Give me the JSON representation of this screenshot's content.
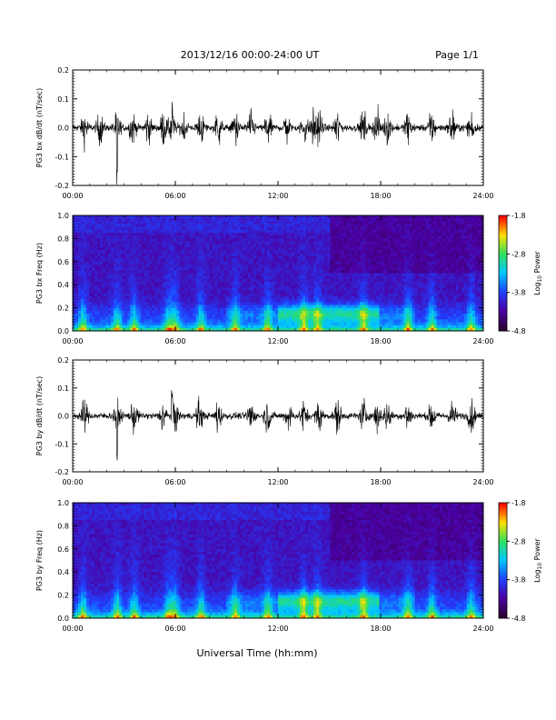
{
  "header": {
    "title": "2013/12/16  00:00-24:00 UT",
    "page": "Page 1/1"
  },
  "colorbar": {
    "label": "Log",
    "label_sub": "10",
    "label_tail": " Power",
    "ticks": [
      "-1.8",
      "-2.8",
      "-3.8",
      "-4.8"
    ],
    "range": [
      -4.8,
      -1.8
    ],
    "colors": [
      "#2a0030",
      "#4b00a0",
      "#2040ff",
      "#00c8ff",
      "#30e060",
      "#ffe000",
      "#ff0000"
    ]
  },
  "chart_data": [
    {
      "type": "line",
      "ylabel": "PG3 bx dB/dt (nT/sec)",
      "x_range_hours": [
        0,
        24
      ],
      "xticks": [
        "00:00",
        "06:00",
        "12:00",
        "18:00",
        "24:00"
      ],
      "ylim": [
        -0.2,
        0.2
      ],
      "yticks": [
        "0.2",
        "0.1",
        "0.0",
        "-0.1",
        "-0.2"
      ],
      "series": [
        {
          "trace_color": "#000000",
          "bursts_hours": [
            0.7,
            1.6,
            2.6,
            3.5,
            4.4,
            5.3,
            5.8,
            6.5,
            7.5,
            8.5,
            9.5,
            10.4,
            11.4,
            12.5,
            13.5,
            14.0,
            14.4,
            15.5,
            17.0,
            17.8,
            18.4,
            19.6,
            21.0,
            22.2,
            23.3
          ],
          "peak_min": -0.2,
          "peak_max": 0.12,
          "peak_min_hours": 2.6,
          "peak_max_hours": 5.8
        }
      ]
    },
    {
      "type": "heatmap",
      "ylabel": "PG3 bx Freq (Hz)",
      "x_range_hours": [
        0,
        24
      ],
      "xticks": [
        "00:00",
        "06:00",
        "12:00",
        "18:00",
        "24:00"
      ],
      "ylim": [
        0.0,
        1.0
      ],
      "yticks": [
        "1.0",
        "0.8",
        "0.6",
        "0.4",
        "0.2",
        "0.0"
      ],
      "value_range": [
        -4.8,
        -1.8
      ],
      "enhancements_hours": [
        0.6,
        2.6,
        3.6,
        5.6,
        6.0,
        7.5,
        9.5,
        11.4,
        13.5,
        14.3,
        17.0,
        19.6,
        21.0,
        23.3
      ]
    },
    {
      "type": "line",
      "ylabel": "PG3 by dB/dt (nT/sec)",
      "x_range_hours": [
        0,
        24
      ],
      "xticks": [
        "00:00",
        "06:00",
        "12:00",
        "18:00",
        "24:00"
      ],
      "ylim": [
        -0.2,
        0.2
      ],
      "yticks": [
        "0.2",
        "0.1",
        "0.0",
        "-0.1",
        "-0.2"
      ],
      "series": [
        {
          "trace_color": "#000000",
          "bursts_hours": [
            0.7,
            2.6,
            3.6,
            5.3,
            6.0,
            7.4,
            8.5,
            10.4,
            11.4,
            12.6,
            13.5,
            14.4,
            15.5,
            17.0,
            17.8,
            18.4,
            19.6,
            21.0,
            22.2,
            23.3
          ],
          "peak_min": -0.16,
          "peak_max": 0.1,
          "peak_min_hours": 2.6,
          "peak_max_hours": 5.8
        }
      ]
    },
    {
      "type": "heatmap",
      "ylabel": "PG3 by Freq (Hz)",
      "x_range_hours": [
        0,
        24
      ],
      "xticks": [
        "00:00",
        "06:00",
        "12:00",
        "18:00",
        "24:00"
      ],
      "ylim": [
        0.0,
        1.0
      ],
      "yticks": [
        "1.0",
        "0.8",
        "0.6",
        "0.4",
        "0.2",
        "0.0"
      ],
      "value_range": [
        -4.8,
        -1.8
      ],
      "enhancements_hours": [
        0.6,
        2.6,
        3.6,
        5.6,
        6.0,
        7.5,
        9.5,
        11.4,
        13.5,
        14.3,
        17.0,
        19.6,
        21.0,
        23.3
      ]
    }
  ],
  "footer": {
    "xlabel": "Universal Time (hh:mm)"
  }
}
